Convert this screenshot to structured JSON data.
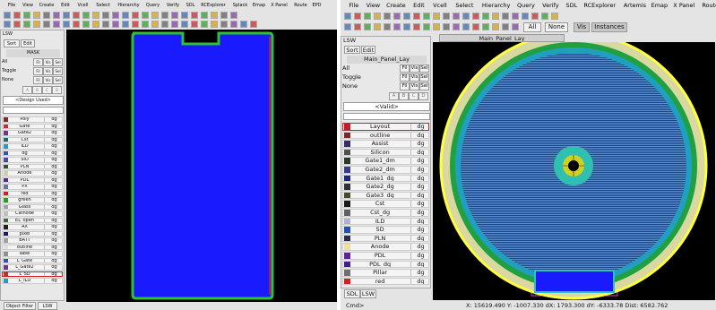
{
  "left_window": {
    "menu": [
      "File",
      "View",
      "Create",
      "Edit",
      "Vcell",
      "Select",
      "Hierarchy",
      "Query",
      "Verify",
      "SDL",
      "RCExplorer",
      "Splack",
      "Emap",
      "X Panel",
      "Route",
      "EPD"
    ],
    "lsw": {
      "title": "LSW",
      "menu": [
        "Sort",
        "Edit"
      ],
      "cell": "MASK",
      "rows": [
        "All",
        "Toggle",
        "None"
      ],
      "buttons": [
        "Fil",
        "Vis",
        "Sel"
      ],
      "letters": [
        "A",
        "B",
        "C",
        "D"
      ],
      "filter": "<Design Used>",
      "layers": [
        {
          "name": "Poly",
          "purpose": "dg",
          "color": "#7a2a2a"
        },
        {
          "name": "Gate",
          "purpose": "dg",
          "color": "#c03030"
        },
        {
          "name": "Gate2",
          "purpose": "dg",
          "color": "#6a3a8a"
        },
        {
          "name": "Cst",
          "purpose": "dg",
          "color": "#1a6a6a"
        },
        {
          "name": "ILD",
          "purpose": "dg",
          "color": "#20a0c0"
        },
        {
          "name": "dg",
          "purpose": "dg",
          "color": "#3050c0"
        },
        {
          "name": "SIO",
          "purpose": "dg",
          "color": "#4a4a9a"
        },
        {
          "name": "PLN",
          "purpose": "dg",
          "color": "#305030"
        },
        {
          "name": "Anode",
          "purpose": "dg",
          "color": "#d0d0b0"
        },
        {
          "name": "PDL",
          "purpose": "dg",
          "color": "#5a2a8a"
        },
        {
          "name": "PX",
          "purpose": "dg",
          "color": "#7070a0"
        },
        {
          "name": "red",
          "purpose": "dg",
          "color": "#d02020"
        },
        {
          "name": "green",
          "purpose": "dg",
          "color": "#20a020"
        },
        {
          "name": "Glass",
          "purpose": "dg",
          "color": "#a0a0a0"
        },
        {
          "name": "Cathode",
          "purpose": "dg",
          "color": "#c0c0c0"
        },
        {
          "name": "EL_open",
          "purpose": "dg",
          "color": "#3a6a3a"
        },
        {
          "name": "AX",
          "purpose": "dg",
          "color": "#202020"
        },
        {
          "name": "pixel",
          "purpose": "dg",
          "color": "#1a1a6a"
        },
        {
          "name": "BATT",
          "purpose": "dg",
          "color": "#a0a0a0"
        },
        {
          "name": "outline",
          "purpose": "dg",
          "color": "#e0e0e0"
        },
        {
          "name": "label",
          "purpose": "dg",
          "color": "#909090"
        },
        {
          "name": "L_Gate",
          "purpose": "dg",
          "color": "#3050c0"
        },
        {
          "name": "L_Gate2",
          "purpose": "dg",
          "color": "#6a3a8a"
        },
        {
          "name": "L_SD",
          "purpose": "dg",
          "color": "#c03030"
        },
        {
          "name": "L_ILD",
          "purpose": "dg",
          "color": "#20a0c0"
        }
      ],
      "tabs": [
        "Object Filter",
        "LSW"
      ]
    }
  },
  "right_window": {
    "menu": [
      "File",
      "View",
      "Create",
      "Edit",
      "Vcell",
      "Select",
      "Hierarchy",
      "Query",
      "Verify",
      "SDL",
      "RCExplorer",
      "Artemis",
      "Emap",
      "X Panel",
      "Route"
    ],
    "toolbar": [
      "All",
      "None",
      "Vis",
      "Instances"
    ],
    "tab_title": "Main_Panel_Lay",
    "lsw": {
      "title": "LSW",
      "menu": [
        "Sort",
        "Edit"
      ],
      "cell": "Main_Panel_Lay",
      "rows": [
        "All",
        "Toggle",
        "None"
      ],
      "buttons": [
        "Fil",
        "Vis",
        "Sel"
      ],
      "letters": [
        "A",
        "B",
        "C",
        "D"
      ],
      "filter": "<Valid>",
      "layers": [
        {
          "name": "Layout",
          "purpose": "dg",
          "color": "#c02020"
        },
        {
          "name": "outline",
          "purpose": "dg",
          "color": "#7a2a2a"
        },
        {
          "name": "Assist",
          "purpose": "dg",
          "color": "#3a2a6a"
        },
        {
          "name": "Silicon",
          "purpose": "dg",
          "color": "#505050"
        },
        {
          "name": "Gate1_dm",
          "purpose": "dg",
          "color": "#2a3a2a"
        },
        {
          "name": "Gate2_dm",
          "purpose": "dg",
          "color": "#3a3a8a"
        },
        {
          "name": "Gate1_dg",
          "purpose": "dg",
          "color": "#1a2a6a"
        },
        {
          "name": "Gate2_dg",
          "purpose": "dg",
          "color": "#303030"
        },
        {
          "name": "Gate3_dg",
          "purpose": "dg",
          "color": "#4a4a2a"
        },
        {
          "name": "Cst",
          "purpose": "dg",
          "color": "#1a1a1a"
        },
        {
          "name": "Cst_dg",
          "purpose": "dg",
          "color": "#606060"
        },
        {
          "name": "ILD",
          "purpose": "dg",
          "color": "#b0b0d0"
        },
        {
          "name": "SD",
          "purpose": "dg",
          "color": "#2050c0"
        },
        {
          "name": "PLN",
          "purpose": "dg",
          "color": "#2a2a4a"
        },
        {
          "name": "Anode",
          "purpose": "dg",
          "color": "#f0e0a0"
        },
        {
          "name": "PDL",
          "purpose": "dg",
          "color": "#6020a0"
        },
        {
          "name": "PDL_dg",
          "purpose": "dg",
          "color": "#402080"
        },
        {
          "name": "Pillar",
          "purpose": "dg",
          "color": "#707070"
        },
        {
          "name": "red",
          "purpose": "dg",
          "color": "#d02020"
        }
      ],
      "tabs": [
        "SDL",
        "LSW"
      ]
    },
    "status": {
      "cmd": "Cmd>",
      "coords": "X: 15619.490 Y: -1007.330 dX: 1793.300 dY: -6333.78 Dist: 6582.762"
    }
  }
}
